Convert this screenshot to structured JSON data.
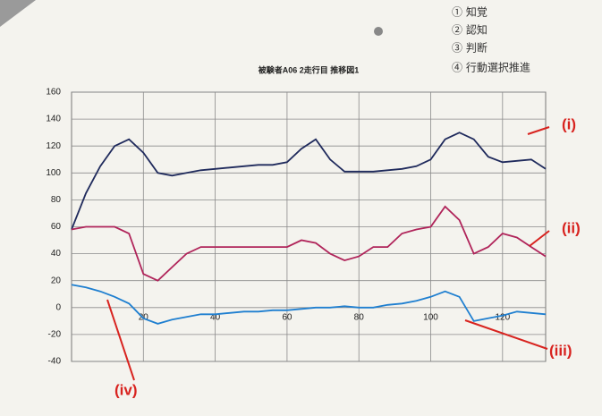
{
  "chart_data": {
    "type": "line",
    "title": "被験者A06 2走行目 推移図1",
    "x": [
      0,
      4,
      8,
      12,
      16,
      20,
      24,
      28,
      32,
      36,
      40,
      44,
      48,
      52,
      56,
      60,
      64,
      68,
      72,
      76,
      80,
      84,
      88,
      92,
      96,
      100,
      104,
      108,
      112,
      116,
      120,
      124,
      128,
      132
    ],
    "series": [
      {
        "color": "#1f2a5c",
        "values": [
          58,
          85,
          105,
          120,
          125,
          115,
          100,
          98,
          100,
          102,
          103,
          104,
          105,
          106,
          106,
          108,
          118,
          125,
          110,
          101,
          101,
          101,
          102,
          103,
          105,
          110,
          125,
          130,
          125,
          112,
          108,
          109,
          110,
          103
        ]
      },
      {
        "color": "#b0245a",
        "values": [
          58,
          60,
          60,
          60,
          55,
          25,
          20,
          30,
          40,
          45,
          45,
          45,
          45,
          45,
          45,
          45,
          50,
          48,
          40,
          35,
          38,
          45,
          45,
          55,
          58,
          60,
          75,
          65,
          40,
          45,
          55,
          52,
          45,
          38
        ]
      },
      {
        "color": "#1f7fd0",
        "values": [
          17,
          15,
          12,
          8,
          3,
          -8,
          -12,
          -9,
          -7,
          -5,
          -5,
          -4,
          -3,
          -3,
          -2,
          -2,
          -1,
          0,
          0,
          1,
          0,
          0,
          2,
          3,
          5,
          8,
          12,
          8,
          -10,
          -8,
          -6,
          -3,
          -4,
          -5
        ]
      }
    ],
    "xlim": [
      0,
      132
    ],
    "xticks": [
      20,
      40,
      60,
      80,
      100,
      120
    ],
    "ylim": [
      -40,
      160
    ],
    "yticks": [
      -40,
      -20,
      0,
      20,
      40,
      60,
      80,
      100,
      120,
      140,
      160
    ],
    "grid": true,
    "annotations": [
      "(i)",
      "(ii)",
      "(iii)",
      "(iv)"
    ],
    "notes": [
      "① 知覚",
      "② 認知",
      "③ 判断",
      "④ 行動選択推進"
    ]
  }
}
